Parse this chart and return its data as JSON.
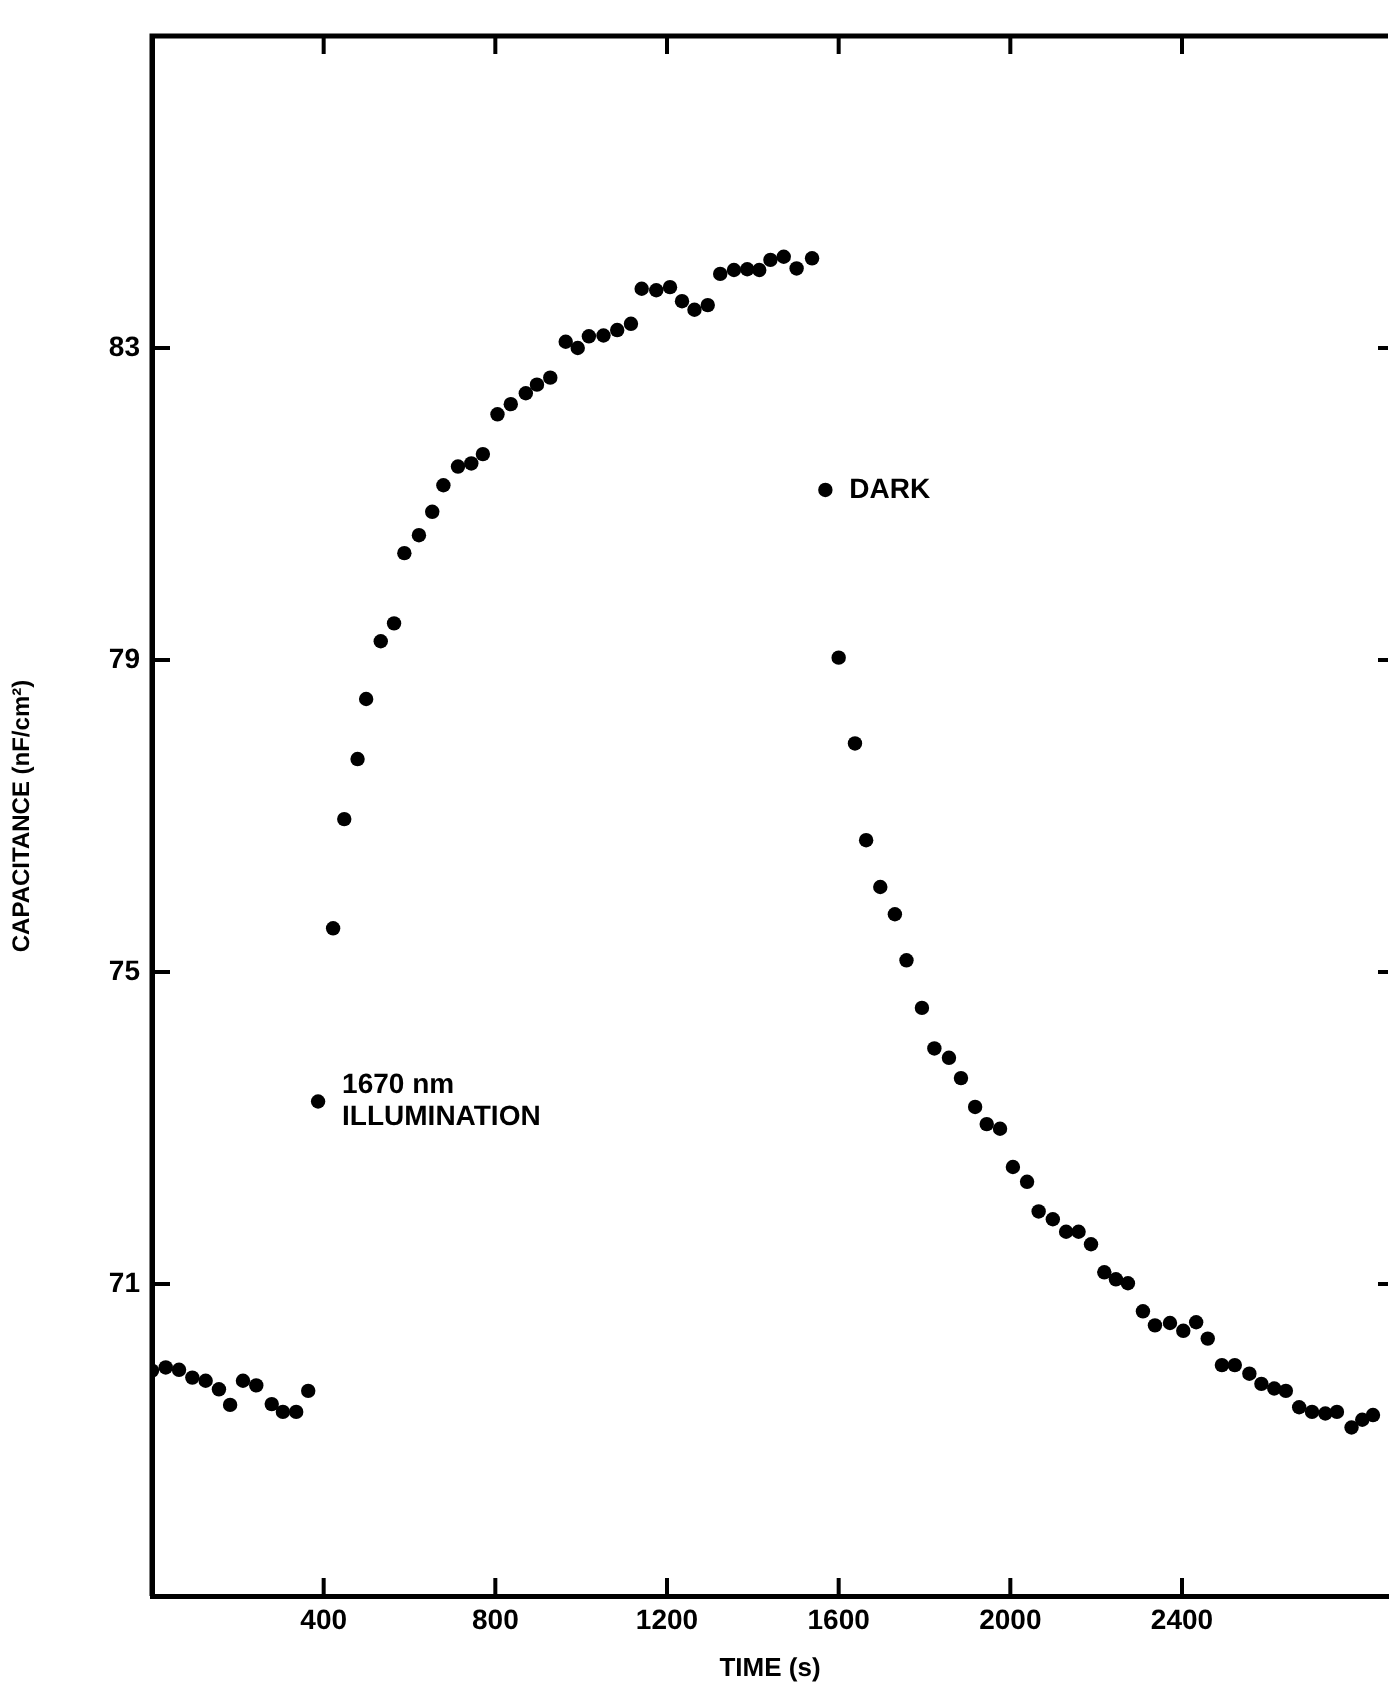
{
  "chart_data": {
    "type": "scatter",
    "xlabel": "TIME (s)",
    "ylabel": "CAPACITANCE (nF/cm²)",
    "xlim": [
      0,
      2880
    ],
    "ylim": [
      67,
      87
    ],
    "xticks": [
      400,
      800,
      1200,
      1600,
      2000,
      2400
    ],
    "yticks": [
      71,
      75,
      79,
      83
    ],
    "marker": "circle",
    "legend": false,
    "grid": false,
    "series": [
      {
        "color": "#000000",
        "x": [
          0,
          32,
          63,
          94,
          125,
          156,
          182,
          212,
          243,
          279,
          305,
          336,
          364,
          387,
          422,
          448,
          479,
          499,
          533,
          564,
          588,
          622,
          653,
          679,
          713,
          744,
          771,
          805,
          836,
          871,
          897,
          928,
          964,
          992,
          1018,
          1052,
          1084,
          1116,
          1141,
          1175,
          1207,
          1235,
          1264,
          1295,
          1324,
          1356,
          1387,
          1415,
          1441,
          1472,
          1502,
          1538,
          1569,
          1600,
          1638,
          1664,
          1697,
          1731,
          1758,
          1794,
          1823,
          1857,
          1885,
          1918,
          1945,
          1976,
          2006,
          2039,
          2066,
          2099,
          2130,
          2159,
          2188,
          2219,
          2246,
          2274,
          2309,
          2337,
          2372,
          2403,
          2433,
          2460,
          2493,
          2523,
          2557,
          2585,
          2615,
          2642,
          2673,
          2703,
          2734,
          2761,
          2795,
          2820,
          2845
        ],
        "values": [
          69.89,
          69.93,
          69.9,
          69.8,
          69.76,
          69.65,
          69.45,
          69.76,
          69.7,
          69.46,
          69.36,
          69.36,
          69.63,
          73.34,
          75.56,
          76.96,
          77.73,
          78.5,
          79.24,
          79.47,
          80.37,
          80.6,
          80.9,
          81.24,
          81.48,
          81.52,
          81.64,
          82.15,
          82.28,
          82.42,
          82.53,
          82.62,
          83.08,
          83.0,
          83.15,
          83.16,
          83.23,
          83.31,
          83.76,
          83.74,
          83.78,
          83.6,
          83.49,
          83.55,
          83.95,
          84.0,
          84.01,
          84.0,
          84.13,
          84.17,
          84.02,
          84.15,
          81.18,
          79.03,
          77.93,
          76.69,
          76.09,
          75.74,
          75.15,
          74.54,
          74.02,
          73.9,
          73.64,
          73.27,
          73.05,
          72.99,
          72.5,
          72.31,
          71.93,
          71.83,
          71.67,
          71.67,
          71.51,
          71.15,
          71.06,
          71.01,
          70.65,
          70.47,
          70.5,
          70.4,
          70.51,
          70.3,
          69.96,
          69.96,
          69.85,
          69.72,
          69.66,
          69.63,
          69.42,
          69.36,
          69.34,
          69.36,
          69.16,
          69.26,
          69.32
        ]
      }
    ],
    "annotations": [
      {
        "text": "1670 nm\nILLUMINATION",
        "x": 387,
        "y": 73.34
      },
      {
        "text": "DARK",
        "x": 1569,
        "y": 81.18
      }
    ]
  }
}
